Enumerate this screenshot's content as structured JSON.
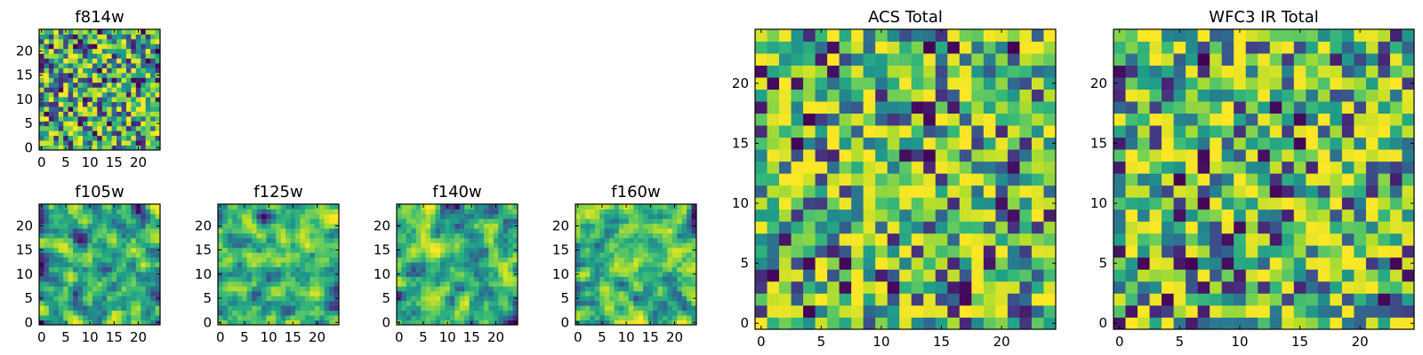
{
  "chart_data": [
    {
      "type": "heatmap",
      "title": "f814w",
      "grid_size": 25,
      "colormap": "viridis",
      "xticks": [
        0,
        5,
        10,
        15,
        20
      ],
      "yticks": [
        0,
        5,
        10,
        15,
        20
      ],
      "seed": 11,
      "smooth": 0,
      "sharpness": 1.6
    },
    {
      "type": "heatmap",
      "title": "f105w",
      "grid_size": 25,
      "colormap": "viridis",
      "xticks": [
        0,
        5,
        10,
        15,
        20
      ],
      "yticks": [
        0,
        5,
        10,
        15,
        20
      ],
      "seed": 23,
      "smooth": 1,
      "sharpness": 1.6
    },
    {
      "type": "heatmap",
      "title": "f125w",
      "grid_size": 25,
      "colormap": "viridis",
      "xticks": [
        0,
        5,
        10,
        15,
        20
      ],
      "yticks": [
        0,
        5,
        10,
        15,
        20
      ],
      "seed": 37,
      "smooth": 1,
      "sharpness": 1.6
    },
    {
      "type": "heatmap",
      "title": "f140w",
      "grid_size": 25,
      "colormap": "viridis",
      "xticks": [
        0,
        5,
        10,
        15,
        20
      ],
      "yticks": [
        0,
        5,
        10,
        15,
        20
      ],
      "seed": 41,
      "smooth": 1,
      "sharpness": 1.6
    },
    {
      "type": "heatmap",
      "title": "f160w",
      "grid_size": 25,
      "colormap": "viridis",
      "xticks": [
        0,
        5,
        10,
        15,
        20
      ],
      "yticks": [
        0,
        5,
        10,
        15,
        20
      ],
      "seed": 53,
      "smooth": 1,
      "sharpness": 1.6
    },
    {
      "type": "heatmap",
      "title": "ACS Total",
      "grid_size": 25,
      "colormap": "viridis",
      "xticks": [
        0,
        5,
        10,
        15,
        20
      ],
      "yticks": [
        0,
        5,
        10,
        15,
        20
      ],
      "seed": 67,
      "smooth": 0,
      "sharpness": 1.8
    },
    {
      "type": "heatmap",
      "title": "WFC3 IR Total",
      "grid_size": 25,
      "colormap": "viridis",
      "xticks": [
        0,
        5,
        10,
        15,
        20
      ],
      "yticks": [
        0,
        5,
        10,
        15,
        20
      ],
      "seed": 79,
      "smooth": 0,
      "sharpness": 1.8
    }
  ]
}
